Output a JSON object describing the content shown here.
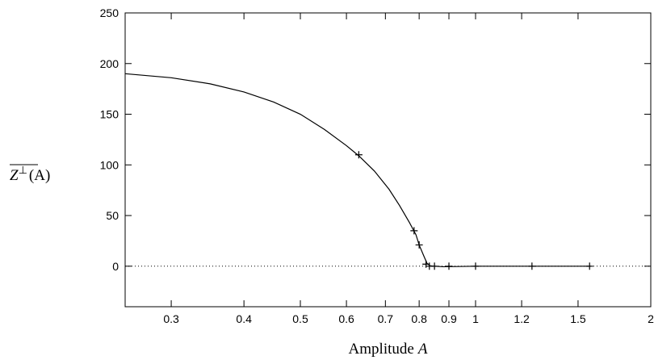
{
  "chart_data": {
    "type": "line",
    "xscale": "log",
    "xlim": [
      0.25,
      2.0
    ],
    "ylim": [
      -40,
      250
    ],
    "xlabel": {
      "text": "Amplitude",
      "symbol": "A"
    },
    "ylabel": {
      "symbol": "Z",
      "superscript": "⊥",
      "argument": "(A)",
      "overline": true
    },
    "x_ticks": [
      {
        "value": 0.3,
        "label": "0.3"
      },
      {
        "value": 0.4,
        "label": "0.4"
      },
      {
        "value": 0.5,
        "label": "0.5"
      },
      {
        "value": 0.6,
        "label": "0.6"
      },
      {
        "value": 0.7,
        "label": "0.7"
      },
      {
        "value": 0.8,
        "label": "0.8"
      },
      {
        "value": 0.9,
        "label": "0.9"
      },
      {
        "value": 1.0,
        "label": "1"
      },
      {
        "value": 1.2,
        "label": "1.2"
      },
      {
        "value": 1.5,
        "label": "1.5"
      },
      {
        "value": 2.0,
        "label": "2"
      }
    ],
    "y_ticks": [
      {
        "value": 0,
        "label": "0"
      },
      {
        "value": 50,
        "label": "50"
      },
      {
        "value": 100,
        "label": "100"
      },
      {
        "value": 150,
        "label": "150"
      },
      {
        "value": 200,
        "label": "200"
      },
      {
        "value": 250,
        "label": "250"
      }
    ],
    "reference_line": {
      "y": 0,
      "style": "dotted"
    },
    "series": [
      {
        "style": "solid",
        "color": "#000000",
        "x": [
          0.25,
          0.3,
          0.35,
          0.4,
          0.45,
          0.5,
          0.55,
          0.6,
          0.63,
          0.67,
          0.71,
          0.74,
          0.77,
          0.79,
          0.8,
          0.815,
          0.825,
          0.835,
          0.85,
          0.88,
          0.93,
          1.0,
          1.2,
          1.5,
          1.57
        ],
        "y": [
          190,
          186,
          180,
          172,
          162,
          150,
          135,
          119,
          109,
          94,
          76,
          60,
          43,
          31,
          21,
          10,
          3,
          0.5,
          0,
          -0.5,
          -0.3,
          0,
          0,
          0,
          0
        ]
      },
      {
        "style": "markers",
        "marker": "+",
        "color": "#000000",
        "x": [
          0.63,
          0.784,
          0.8,
          0.822,
          0.833,
          0.85,
          0.9,
          1.0,
          1.25,
          1.57
        ],
        "y": [
          110,
          35,
          21,
          2,
          0,
          0,
          0,
          0,
          0,
          0
        ]
      }
    ]
  }
}
